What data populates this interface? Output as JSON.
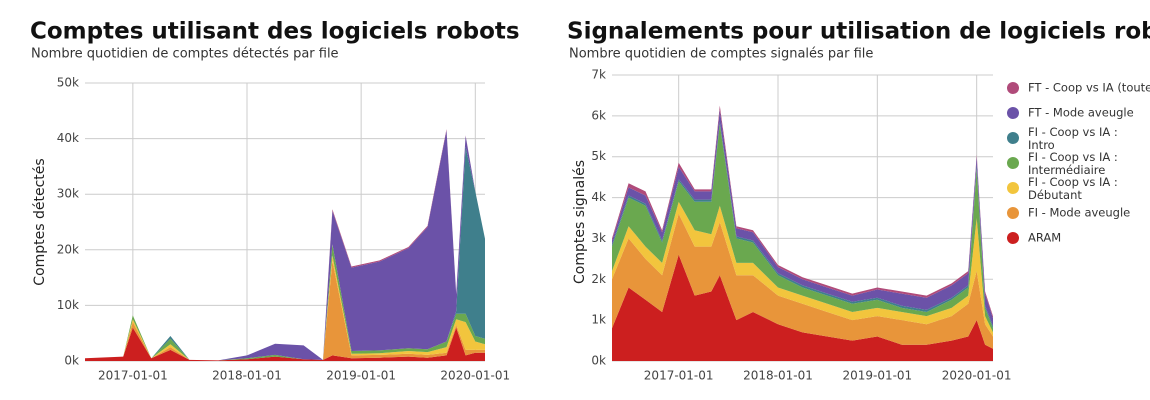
{
  "chart_data": [
    {
      "type": "area",
      "title": "Comptes utilisant des logiciels robots",
      "subtitle": "Nombre quotidien de comptes détectés par file",
      "y_label": "Comptes détectés",
      "x": [
        "2016-08-01",
        "2016-12-01",
        "2017-01-01",
        "2017-03-01",
        "2017-05-01",
        "2017-07-01",
        "2017-10-01",
        "2018-01-01",
        "2018-04-01",
        "2018-07-01",
        "2018-09-01",
        "2018-10-01",
        "2018-12-01",
        "2019-03-01",
        "2019-06-01",
        "2019-08-01",
        "2019-10-01",
        "2019-11-01",
        "2019-12-01",
        "2020-01-01",
        "2020-02-01"
      ],
      "xlim": [
        "2016-08-01",
        "2020-02-01"
      ],
      "xticks": [
        "2017-01-01",
        "2018-01-01",
        "2019-01-01",
        "2020-01-01"
      ],
      "ylim": [
        0,
        50000
      ],
      "yticks": [
        {
          "value": 0,
          "label": "0k"
        },
        {
          "value": 10000,
          "label": "10k"
        },
        {
          "value": 20000,
          "label": "20k"
        },
        {
          "value": 30000,
          "label": "30k"
        },
        {
          "value": 40000,
          "label": "40k"
        },
        {
          "value": 50000,
          "label": "50k"
        }
      ],
      "grid": true,
      "stacked": true,
      "series": [
        {
          "color": "#cc1f1f",
          "values": [
            500,
            800,
            6000,
            500,
            2000,
            200,
            100,
            300,
            800,
            300,
            200,
            1000,
            500,
            600,
            800,
            600,
            1000,
            6000,
            1000,
            1500,
            1500
          ]
        },
        {
          "color": "#e8953a",
          "values": [
            0,
            0,
            1000,
            0,
            500,
            0,
            0,
            0,
            0,
            0,
            0,
            17000,
            500,
            500,
            500,
            500,
            500,
            500,
            1000,
            500,
            500
          ]
        },
        {
          "color": "#f2c53d",
          "values": [
            0,
            0,
            500,
            0,
            500,
            0,
            0,
            0,
            0,
            0,
            0,
            1000,
            300,
            300,
            500,
            500,
            1000,
            1000,
            5000,
            1500,
            1000
          ]
        },
        {
          "color": "#6aa84f",
          "values": [
            0,
            0,
            700,
            0,
            1000,
            0,
            0,
            200,
            300,
            0,
            0,
            2000,
            500,
            500,
            500,
            500,
            1000,
            1000,
            1500,
            1000,
            1000
          ]
        },
        {
          "color": "#3f7f8c",
          "values": [
            0,
            0,
            0,
            0,
            500,
            0,
            0,
            0,
            0,
            0,
            0,
            0,
            0,
            0,
            0,
            0,
            0,
            500,
            30000,
            26000,
            18000
          ]
        },
        {
          "color": "#6b52a8",
          "values": [
            0,
            0,
            0,
            0,
            0,
            0,
            0,
            500,
            2000,
            2500,
            0,
            6000,
            15000,
            16000,
            18000,
            22000,
            38000,
            3000,
            2000,
            0,
            0
          ]
        },
        {
          "color": "#b04b7a",
          "values": [
            0,
            0,
            0,
            0,
            0,
            0,
            0,
            0,
            0,
            0,
            0,
            300,
            200,
            200,
            200,
            200,
            200,
            100,
            100,
            0,
            0
          ]
        }
      ]
    },
    {
      "type": "area",
      "title": "Signalements pour utilisation de logiciels robots",
      "subtitle": "Nombre quotidien de comptes signalés par file",
      "y_label": "Comptes signalés",
      "x": [
        "2016-05-01",
        "2016-07-01",
        "2016-09-01",
        "2016-11-01",
        "2017-01-01",
        "2017-03-01",
        "2017-05-01",
        "2017-06-01",
        "2017-08-01",
        "2017-10-01",
        "2018-01-01",
        "2018-04-01",
        "2018-07-01",
        "2018-10-01",
        "2019-01-01",
        "2019-04-01",
        "2019-07-01",
        "2019-10-01",
        "2019-12-01",
        "2020-01-01",
        "2020-02-01",
        "2020-03-01"
      ],
      "xlim": [
        "2016-05-01",
        "2020-03-01"
      ],
      "xticks": [
        "2017-01-01",
        "2018-01-01",
        "2019-01-01",
        "2020-01-01"
      ],
      "ylim": [
        0,
        7000
      ],
      "yticks": [
        {
          "value": 0,
          "label": "0k"
        },
        {
          "value": 1000,
          "label": "1k"
        },
        {
          "value": 2000,
          "label": "2k"
        },
        {
          "value": 3000,
          "label": "3k"
        },
        {
          "value": 4000,
          "label": "4k"
        },
        {
          "value": 5000,
          "label": "5k"
        },
        {
          "value": 6000,
          "label": "6k"
        },
        {
          "value": 7000,
          "label": "7k"
        }
      ],
      "grid": true,
      "stacked": true,
      "legend": "right",
      "series": [
        {
          "name": "ARAM",
          "color": "#cc1f1f",
          "values": [
            800,
            1800,
            1500,
            1200,
            2600,
            1600,
            1700,
            2100,
            1000,
            1200,
            900,
            700,
            600,
            500,
            600,
            400,
            400,
            500,
            600,
            1000,
            400,
            300
          ]
        },
        {
          "name": "FI - Mode aveugle",
          "color": "#e8953a",
          "values": [
            1200,
            1200,
            1000,
            900,
            1000,
            1200,
            1100,
            1300,
            1100,
            900,
            700,
            700,
            600,
            500,
            500,
            600,
            500,
            600,
            800,
            1200,
            500,
            300
          ]
        },
        {
          "name": "FI - Coop vs IA  : Débutant",
          "color": "#f2c53d",
          "values": [
            200,
            300,
            300,
            300,
            300,
            400,
            300,
            400,
            300,
            300,
            200,
            200,
            200,
            200,
            200,
            200,
            200,
            200,
            200,
            1300,
            200,
            100
          ]
        },
        {
          "name": "FI - Coop vs IA  : Intermédiaire",
          "color": "#6aa84f",
          "values": [
            600,
            700,
            1000,
            500,
            500,
            700,
            800,
            2000,
            600,
            500,
            300,
            200,
            200,
            200,
            200,
            100,
            100,
            200,
            200,
            1200,
            200,
            100
          ]
        },
        {
          "name": "FI - Coop vs IA  : Intro",
          "color": "#3f7f8c",
          "values": [
            50,
            50,
            50,
            50,
            50,
            50,
            50,
            50,
            50,
            50,
            50,
            50,
            50,
            50,
            50,
            50,
            50,
            50,
            50,
            100,
            50,
            50
          ]
        },
        {
          "name": "FT - Mode aveugle",
          "color": "#6b52a8",
          "values": [
            100,
            200,
            200,
            200,
            300,
            200,
            200,
            300,
            200,
            200,
            150,
            150,
            150,
            150,
            200,
            300,
            300,
            300,
            300,
            200,
            300,
            200
          ]
        },
        {
          "name": "FT - Coop vs IA (toutes)",
          "color": "#b04b7a",
          "values": [
            50,
            100,
            100,
            50,
            100,
            50,
            50,
            100,
            50,
            50,
            50,
            50,
            50,
            50,
            50,
            50,
            50,
            50,
            50,
            50,
            50,
            50
          ]
        }
      ]
    }
  ]
}
